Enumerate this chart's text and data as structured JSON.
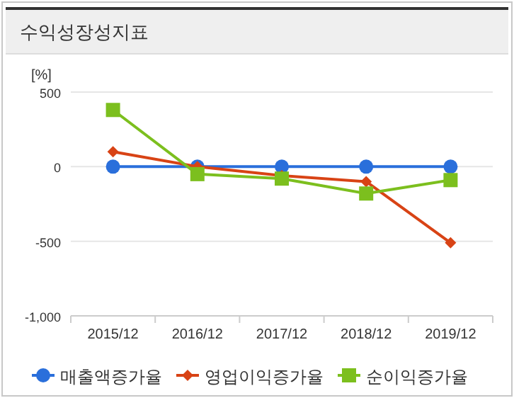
{
  "chart_data": {
    "type": "line",
    "title": "수익성장성지표",
    "ylabel": "[%]",
    "categories": [
      "2015/12",
      "2016/12",
      "2017/12",
      "2018/12",
      "2019/12"
    ],
    "series": [
      {
        "name": "매출액증가율",
        "color": "#2a6fdb",
        "marker": "circle",
        "values": [
          0,
          0,
          0,
          0,
          0
        ]
      },
      {
        "name": "영업이익증가율",
        "color": "#d84315",
        "marker": "diamond",
        "values": [
          100,
          0,
          -60,
          -100,
          -510
        ]
      },
      {
        "name": "순이익증가율",
        "color": "#7cbf1e",
        "marker": "square",
        "values": [
          380,
          -50,
          -80,
          -180,
          -90
        ]
      }
    ],
    "ylim": [
      -1000,
      500
    ],
    "yticks": [
      {
        "value": -1000,
        "label": "-1,000"
      },
      -500,
      0,
      500
    ],
    "grid": "y",
    "legend": "bottom",
    "line_style": "solid"
  }
}
